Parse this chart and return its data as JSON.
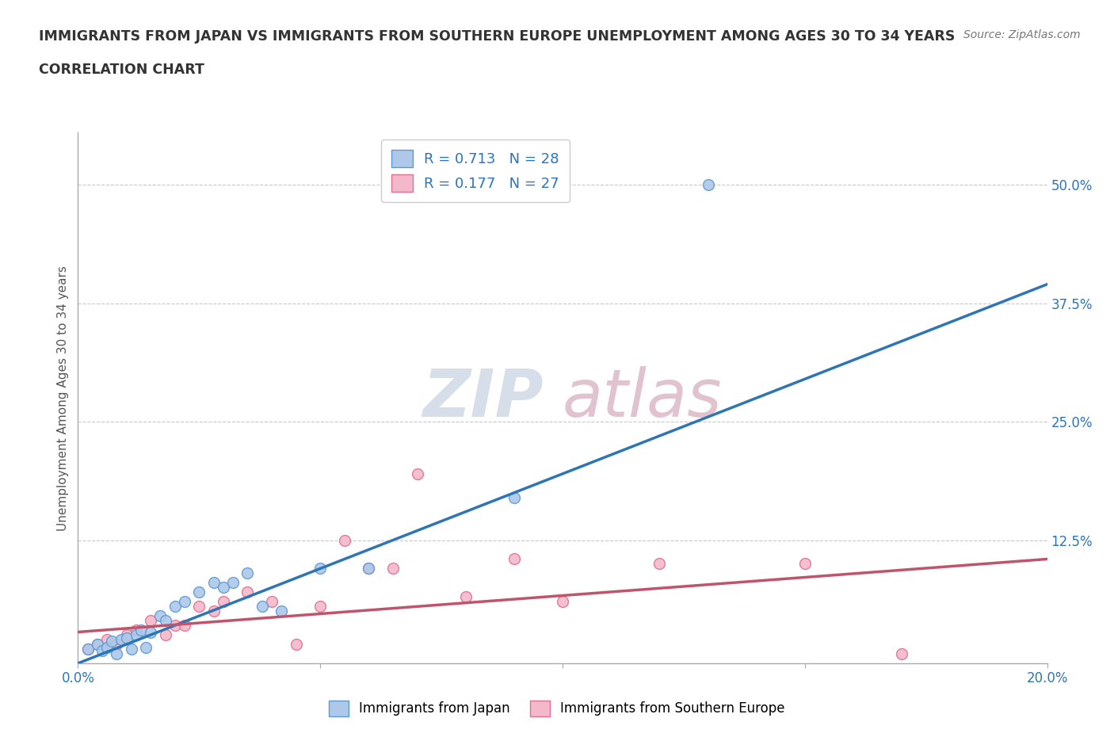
{
  "title_line1": "IMMIGRANTS FROM JAPAN VS IMMIGRANTS FROM SOUTHERN EUROPE UNEMPLOYMENT AMONG AGES 30 TO 34 YEARS",
  "title_line2": "CORRELATION CHART",
  "source": "Source: ZipAtlas.com",
  "ylabel": "Unemployment Among Ages 30 to 34 years",
  "xlim": [
    0.0,
    0.2
  ],
  "ylim": [
    -0.005,
    0.555
  ],
  "xticks": [
    0.0,
    0.05,
    0.1,
    0.15,
    0.2
  ],
  "xticklabels": [
    "0.0%",
    "",
    "",
    "",
    "20.0%"
  ],
  "right_yticks": [
    0.0,
    0.125,
    0.25,
    0.375,
    0.5
  ],
  "right_yticklabels": [
    "",
    "12.5%",
    "25.0%",
    "37.5%",
    "50.0%"
  ],
  "japan_color": "#adc8e8",
  "japan_edge_color": "#5b9bd5",
  "japan_line_color": "#2e75b6",
  "southern_color": "#f4b8cb",
  "southern_edge_color": "#e07090",
  "southern_line_color": "#c0546a",
  "japan_R": 0.713,
  "japan_N": 28,
  "southern_R": 0.177,
  "southern_N": 27,
  "japan_x": [
    0.002,
    0.004,
    0.005,
    0.006,
    0.007,
    0.008,
    0.009,
    0.01,
    0.011,
    0.012,
    0.013,
    0.014,
    0.015,
    0.017,
    0.018,
    0.02,
    0.022,
    0.025,
    0.028,
    0.03,
    0.032,
    0.035,
    0.038,
    0.042,
    0.05,
    0.06,
    0.09,
    0.13
  ],
  "japan_y": [
    0.01,
    0.015,
    0.008,
    0.012,
    0.018,
    0.005,
    0.02,
    0.022,
    0.01,
    0.025,
    0.03,
    0.012,
    0.028,
    0.045,
    0.04,
    0.055,
    0.06,
    0.07,
    0.08,
    0.075,
    0.08,
    0.09,
    0.055,
    0.05,
    0.095,
    0.095,
    0.17,
    0.5
  ],
  "southern_x": [
    0.002,
    0.004,
    0.006,
    0.008,
    0.01,
    0.012,
    0.015,
    0.018,
    0.02,
    0.022,
    0.025,
    0.028,
    0.03,
    0.035,
    0.04,
    0.045,
    0.05,
    0.055,
    0.06,
    0.065,
    0.07,
    0.08,
    0.09,
    0.1,
    0.12,
    0.15,
    0.17
  ],
  "southern_y": [
    0.01,
    0.015,
    0.02,
    0.015,
    0.025,
    0.03,
    0.04,
    0.025,
    0.035,
    0.035,
    0.055,
    0.05,
    0.06,
    0.07,
    0.06,
    0.015,
    0.055,
    0.125,
    0.095,
    0.095,
    0.195,
    0.065,
    0.105,
    0.06,
    0.1,
    0.1,
    0.005
  ],
  "japan_line_x0": 0.0,
  "japan_line_y0": -0.005,
  "japan_line_x1": 0.2,
  "japan_line_y1": 0.395,
  "southern_line_x0": 0.0,
  "southern_line_y0": 0.028,
  "southern_line_x1": 0.2,
  "southern_line_y1": 0.105,
  "legend_label_japan": "Immigrants from Japan",
  "legend_label_southern": "Immigrants from Southern Europe",
  "background_color": "#ffffff",
  "grid_color": "#c8c8c8",
  "title_color": "#333333",
  "tick_label_color": "#2e75b6",
  "marker_size": 100,
  "watermark_zip_color": "#c5d0e0",
  "watermark_atlas_color": "#d4aabb"
}
